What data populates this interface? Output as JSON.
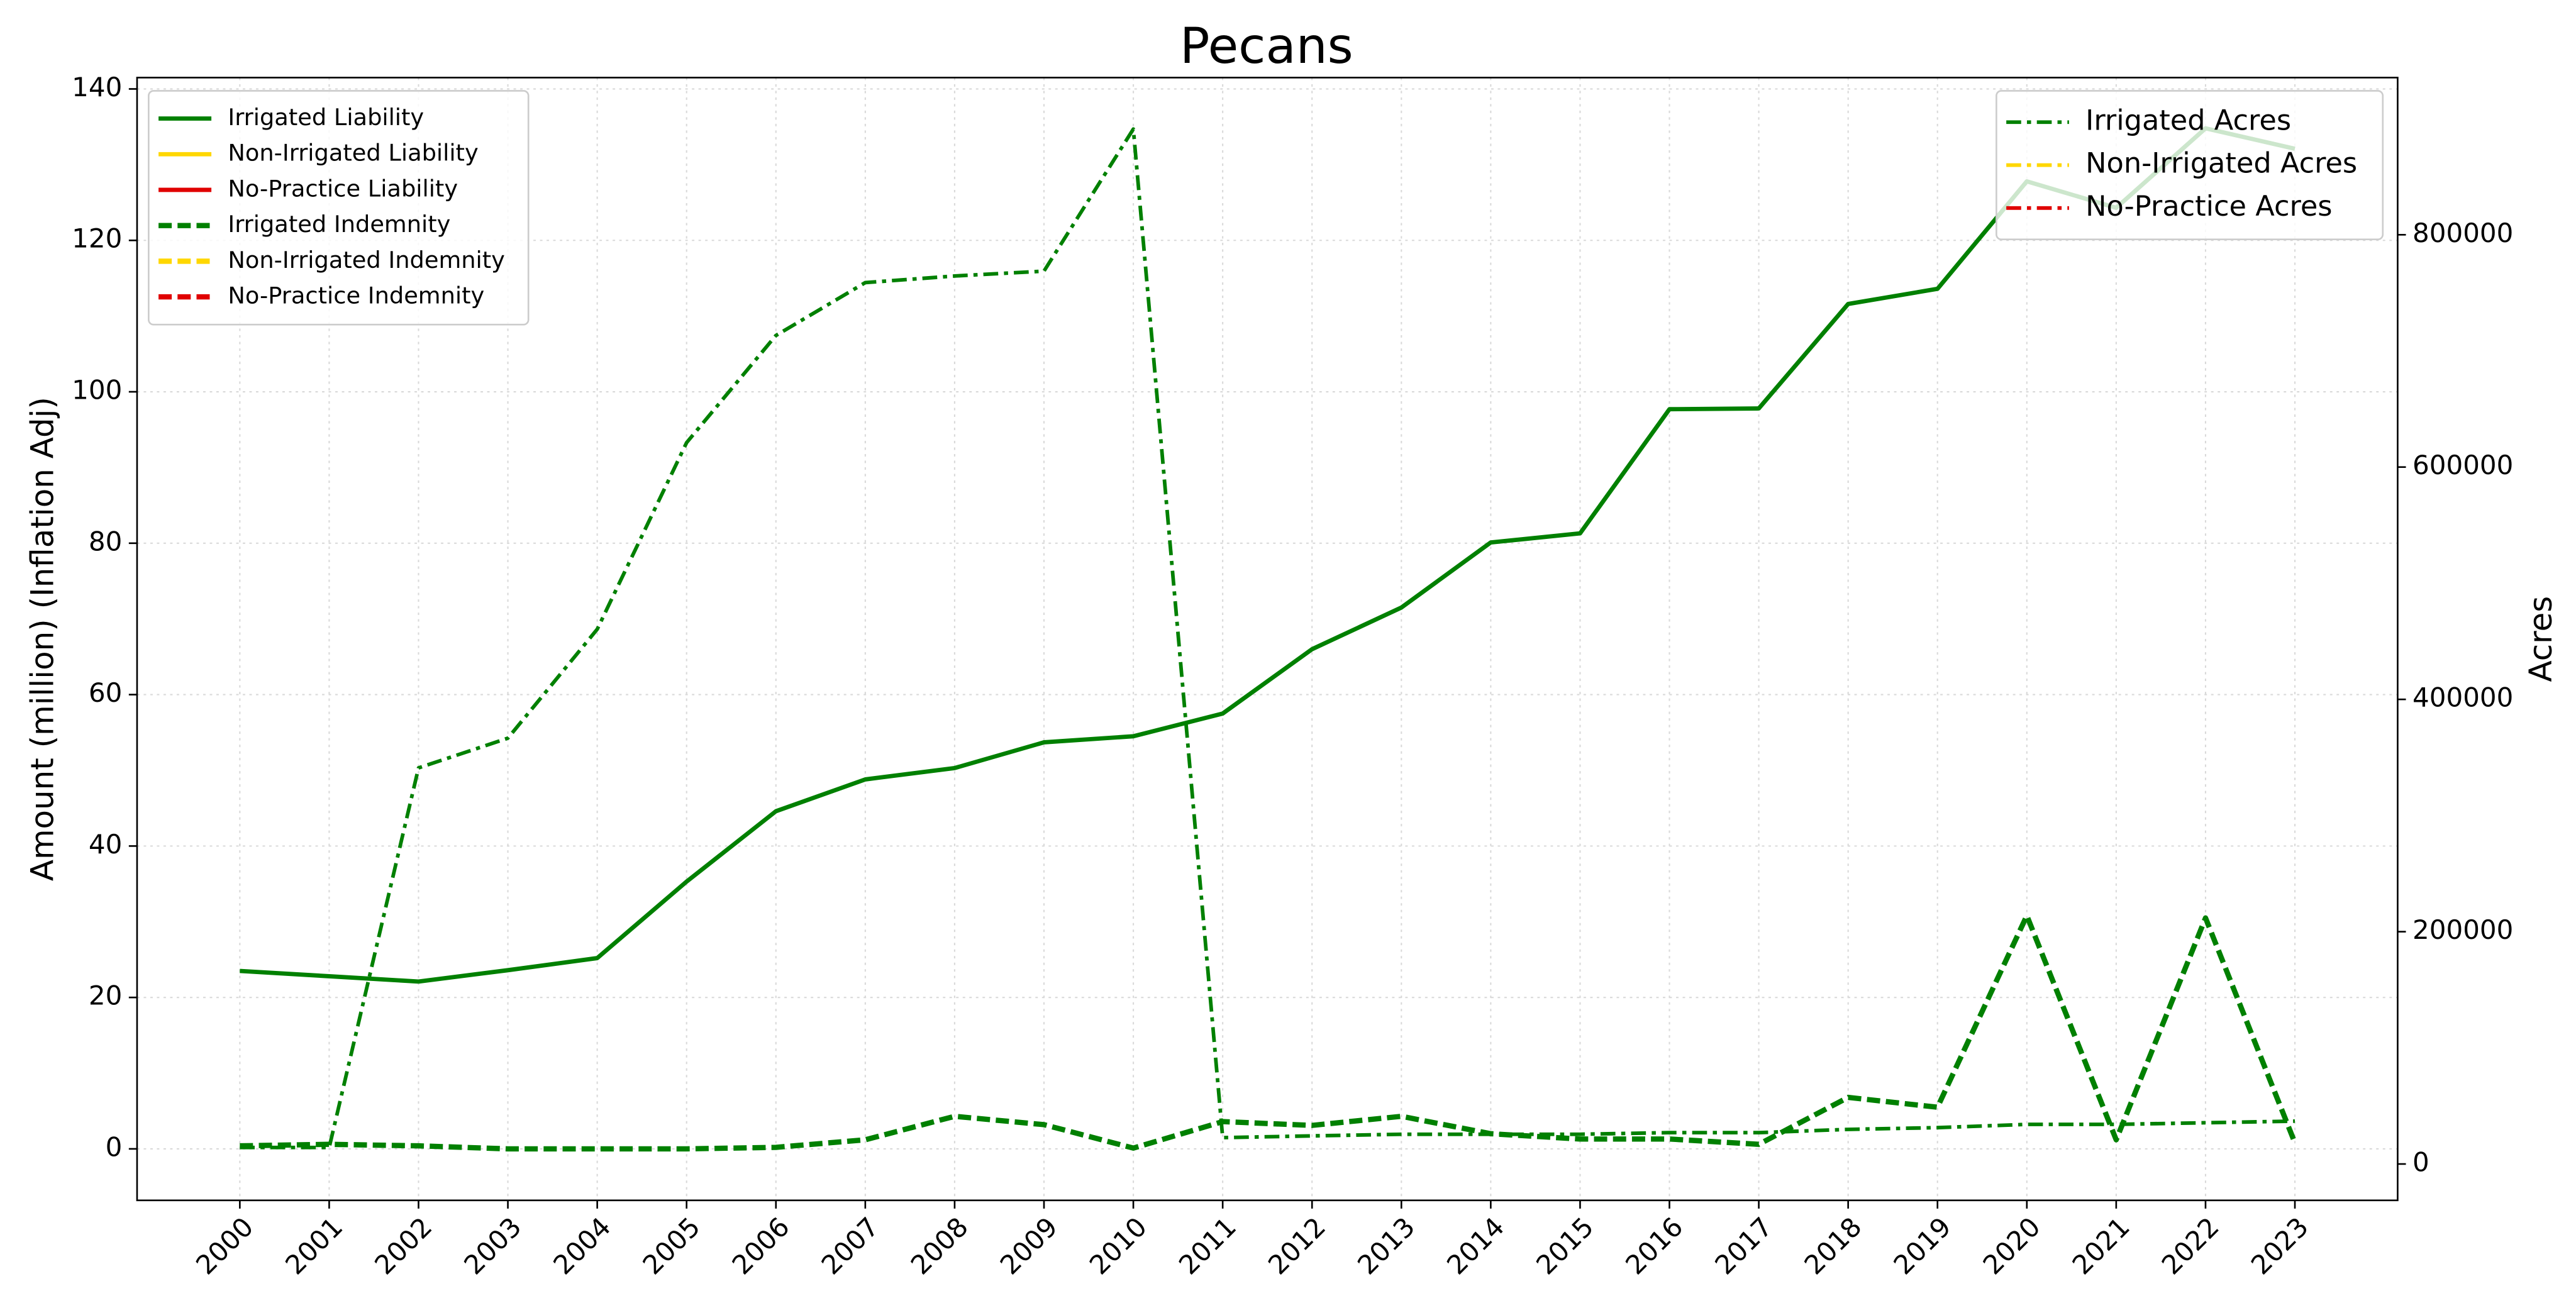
{
  "chart_data": {
    "type": "line",
    "title": "Pecans",
    "ylabel": "Amount (million) (Inflation Adj)",
    "y2label": "Acres",
    "x": [
      2000,
      2001,
      2002,
      2003,
      2004,
      2005,
      2006,
      2007,
      2008,
      2009,
      2010,
      2011,
      2012,
      2013,
      2014,
      2015,
      2016,
      2017,
      2018,
      2019,
      2020,
      2021,
      2022,
      2023
    ],
    "xlim": [
      1998.85,
      2024.15
    ],
    "xticks": [
      2000,
      2001,
      2002,
      2003,
      2004,
      2005,
      2006,
      2007,
      2008,
      2009,
      2010,
      2011,
      2012,
      2013,
      2014,
      2015,
      2016,
      2017,
      2018,
      2019,
      2020,
      2021,
      2022,
      2023
    ],
    "ylim": [
      -6.8,
      141.5
    ],
    "yticks": [
      0,
      20,
      40,
      60,
      80,
      100,
      120,
      140
    ],
    "y2lim": [
      -31300,
      935300
    ],
    "y2ticks": [
      0,
      200000,
      400000,
      600000,
      800000
    ],
    "grid": true,
    "legend_loc": {
      "y": "upper left",
      "y2": "upper right"
    },
    "series": [
      {
        "name": "Irrigated Liability",
        "color": "#008000",
        "style": "solid",
        "axis": "y",
        "values": [
          23.5,
          22.8,
          22.1,
          23.6,
          25.2,
          35.3,
          44.6,
          48.8,
          50.3,
          53.7,
          54.5,
          57.5,
          66.0,
          71.5,
          80.1,
          81.3,
          97.7,
          97.8,
          111.6,
          113.6,
          127.8,
          124.3,
          134.8,
          132.1
        ]
      },
      {
        "name": "Non-Irrigated Liability",
        "color": "#ffd700",
        "style": "solid",
        "axis": "y",
        "values": [
          null,
          null,
          null,
          null,
          null,
          null,
          null,
          null,
          null,
          null,
          null,
          null,
          null,
          null,
          null,
          null,
          null,
          null,
          null,
          null,
          null,
          null,
          null,
          null
        ]
      },
      {
        "name": "No-Practice Liability",
        "color": "#e00000",
        "style": "solid",
        "axis": "y",
        "values": [
          null,
          null,
          null,
          null,
          null,
          null,
          null,
          null,
          null,
          null,
          null,
          null,
          null,
          null,
          null,
          null,
          null,
          null,
          null,
          null,
          null,
          null,
          null,
          null
        ]
      },
      {
        "name": "Irrigated Indemnity",
        "color": "#008000",
        "style": "dashed",
        "axis": "y",
        "values": [
          0.4,
          0.6,
          0.4,
          0,
          0,
          0,
          0.2,
          1.2,
          4.3,
          3.2,
          0.1,
          3.6,
          3.1,
          4.3,
          2.0,
          1.3,
          1.3,
          0.6,
          6.8,
          5.5,
          30.8,
          1.2,
          30.5,
          0.8
        ]
      },
      {
        "name": "Non-Irrigated Indemnity",
        "color": "#ffd700",
        "style": "dashed",
        "axis": "y",
        "values": [
          null,
          null,
          null,
          null,
          null,
          null,
          null,
          null,
          null,
          null,
          null,
          null,
          null,
          null,
          null,
          null,
          null,
          null,
          null,
          null,
          null,
          null,
          null,
          null
        ]
      },
      {
        "name": "No-Practice Indemnity",
        "color": "#e00000",
        "style": "dashed",
        "axis": "y",
        "values": [
          null,
          null,
          null,
          null,
          null,
          null,
          null,
          null,
          null,
          null,
          null,
          null,
          null,
          null,
          null,
          null,
          null,
          null,
          null,
          null,
          null,
          null,
          null,
          null
        ]
      },
      {
        "name": "Irrigated Acres",
        "color": "#008000",
        "style": "dashdot",
        "axis": "y2",
        "values": [
          14200,
          14200,
          341000,
          366600,
          460400,
          621000,
          713300,
          758800,
          764500,
          768700,
          891000,
          22700,
          24200,
          25600,
          25600,
          25600,
          27000,
          27000,
          29800,
          31300,
          34100,
          34100,
          35500,
          36900
        ]
      },
      {
        "name": "Non-Irrigated Acres",
        "color": "#ffd700",
        "style": "dashdot",
        "axis": "y2",
        "values": [
          null,
          null,
          null,
          null,
          null,
          null,
          null,
          null,
          null,
          null,
          null,
          null,
          null,
          null,
          null,
          null,
          null,
          null,
          null,
          null,
          null,
          null,
          null,
          null
        ]
      },
      {
        "name": "No-Practice Acres",
        "color": "#e00000",
        "style": "dashdot",
        "axis": "y2",
        "values": [
          null,
          null,
          null,
          null,
          null,
          null,
          null,
          null,
          null,
          null,
          null,
          null,
          null,
          null,
          null,
          null,
          null,
          null,
          null,
          null,
          null,
          null,
          null,
          null
        ]
      }
    ]
  }
}
